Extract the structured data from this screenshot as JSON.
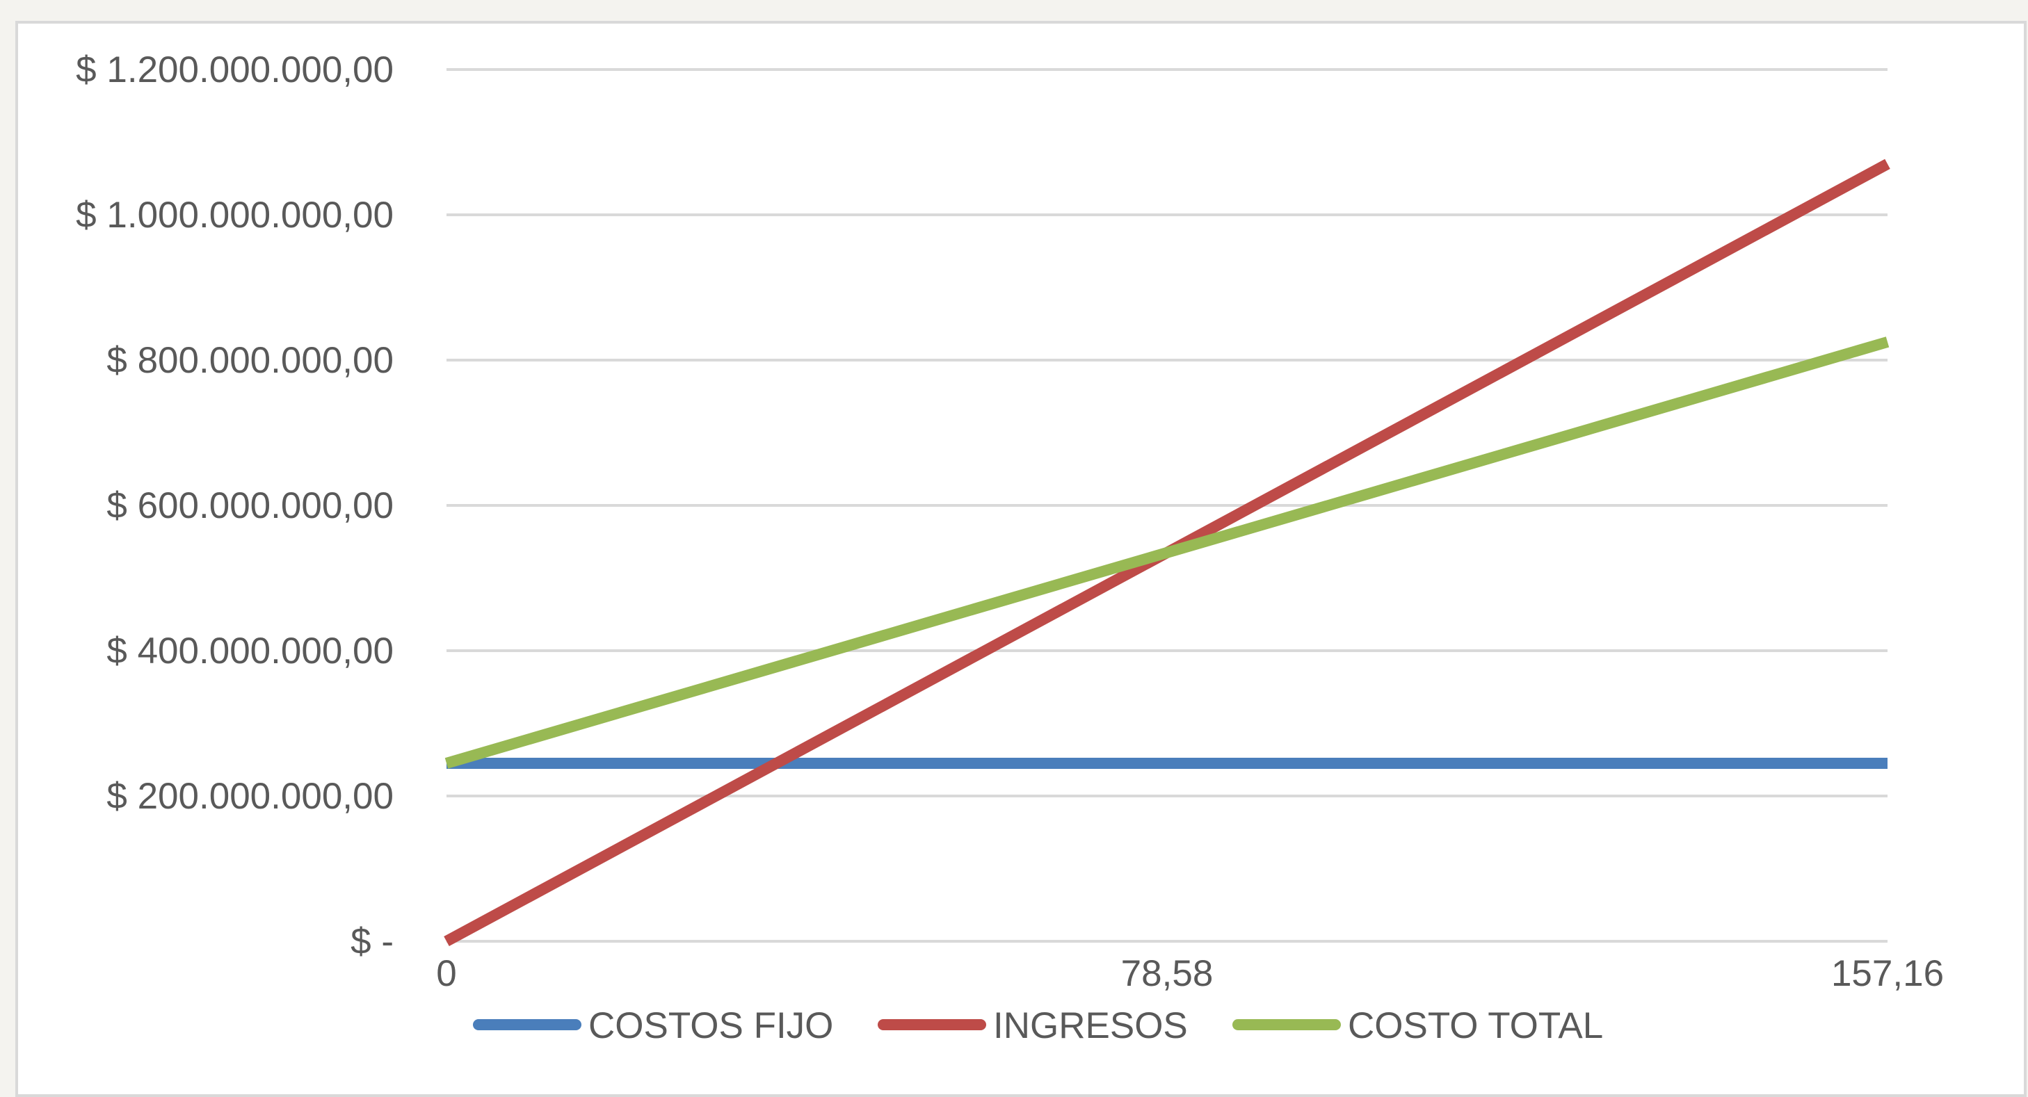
{
  "chart_data": {
    "type": "line",
    "title": "",
    "xlabel": "",
    "ylabel": "",
    "x": [
      0,
      78.58,
      157.16
    ],
    "x_tick_labels": [
      "0",
      "78,58",
      "157,16"
    ],
    "ylim": [
      0,
      1200000000
    ],
    "y_tick_values": [
      0,
      200000000,
      400000000,
      600000000,
      800000000,
      1000000000,
      1200000000
    ],
    "y_tick_labels": [
      "$ -",
      "$ 200.000.000,00",
      "$ 400.000.000,00",
      "$ 600.000.000,00",
      "$ 800.000.000,00",
      "$ 1.000.000.000,00",
      "$ 1.200.000.000,00"
    ],
    "grid": true,
    "legend_position": "bottom",
    "series": [
      {
        "name": "COSTOS FIJO",
        "color": "#4a7ebb",
        "values": [
          245000000,
          245000000,
          245000000
        ]
      },
      {
        "name": "INGRESOS",
        "color": "#be4b48",
        "values": [
          0,
          535000000,
          1070000000
        ]
      },
      {
        "name": "COSTO TOTAL",
        "color": "#98b954",
        "values": [
          245000000,
          535000000,
          825000000
        ]
      }
    ]
  }
}
